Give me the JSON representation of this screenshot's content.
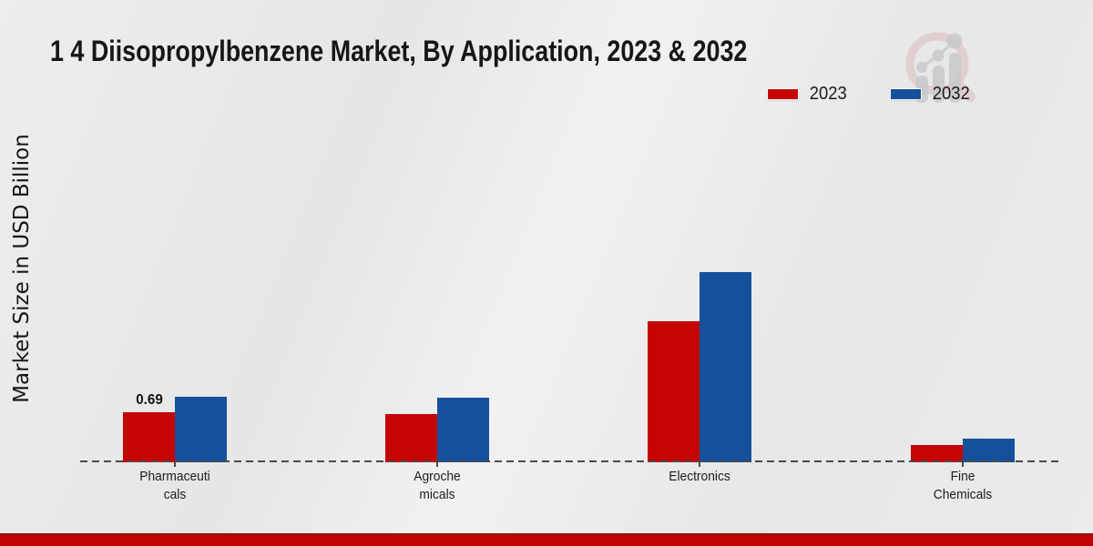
{
  "page": {
    "footer_color": "#c00303",
    "background_color": "#eaeaea"
  },
  "chart_data": {
    "type": "bar",
    "title": "1 4 Diisopropylbenzene Market, By Application, 2023 & 2032",
    "ylabel": "Market Size in USD Billion",
    "xlabel": "",
    "categories": [
      "Pharmaceuticals",
      "Agrochemicals",
      "Electronics",
      "Fine Chemicals"
    ],
    "category_label_lines": [
      [
        "Pharmaceuti",
        "cals"
      ],
      [
        "Agroche",
        "micals"
      ],
      [
        "Electronics"
      ],
      [
        "Fine",
        "Chemicals"
      ]
    ],
    "series": [
      {
        "name": "2023",
        "color": "#c50404",
        "values": [
          0.69,
          0.66,
          1.94,
          0.24
        ]
      },
      {
        "name": "2032",
        "color": "#15519b",
        "values": [
          0.9,
          0.89,
          2.62,
          0.33
        ]
      }
    ],
    "data_labels": [
      {
        "series": "2023",
        "category": "Pharmaceuticals",
        "text": "0.69"
      }
    ],
    "legend_position": "top-right",
    "grid": false,
    "baseline_style": "dashed",
    "axis_numbers_shown": false,
    "ylim": [
      0,
      3
    ]
  }
}
